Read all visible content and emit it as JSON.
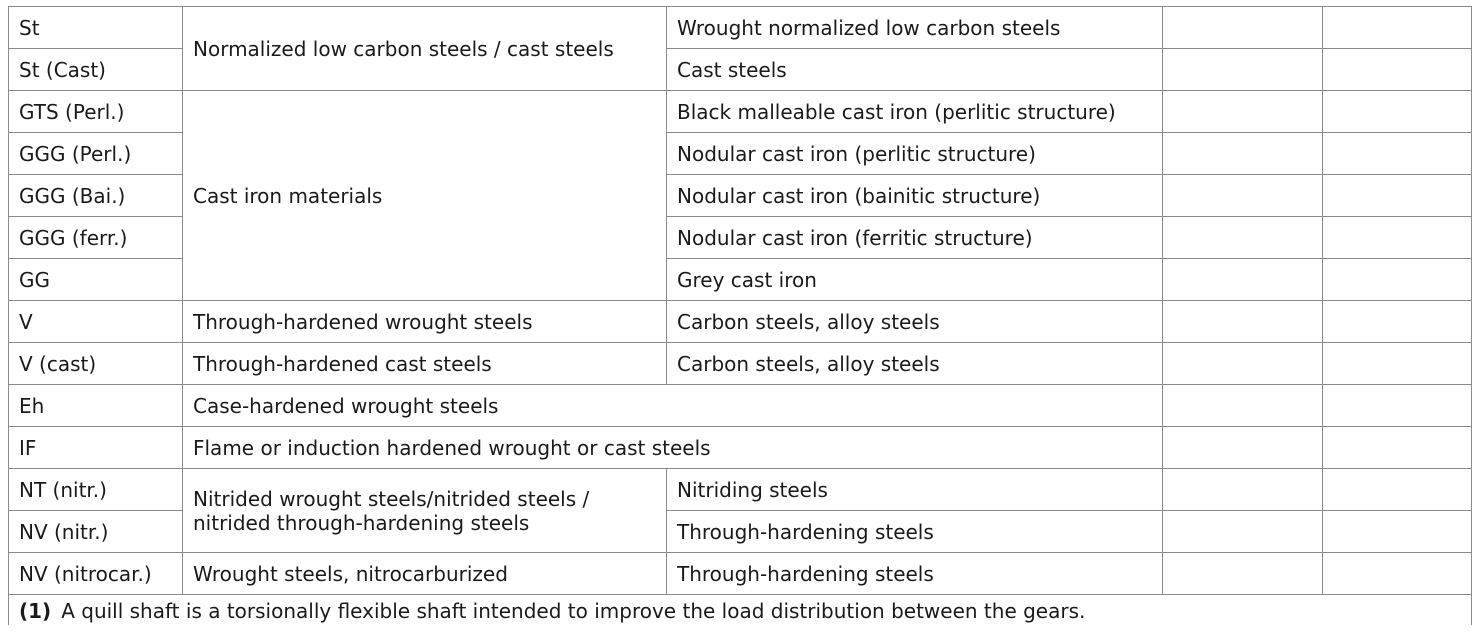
{
  "table": {
    "rows": [
      {
        "code": "St",
        "group": "Normalized low carbon steels / cast steels",
        "desc": "Wrought normalized low carbon steels"
      },
      {
        "code": "St (Cast)",
        "desc": "Cast steels"
      },
      {
        "code": "GTS (Perl.)",
        "group": "Cast iron materials",
        "desc": "Black malleable cast iron (perlitic structure)"
      },
      {
        "code": "GGG (Perl.)",
        "desc": "Nodular cast iron (perlitic structure)"
      },
      {
        "code": "GGG (Bai.)",
        "desc": "Nodular cast iron (bainitic structure)"
      },
      {
        "code": "GGG (ferr.)",
        "desc": "Nodular cast iron (ferritic structure)"
      },
      {
        "code": "GG",
        "desc": "Grey cast iron"
      },
      {
        "code": "V",
        "group": "Through-hardened wrought steels",
        "desc": "Carbon steels, alloy steels"
      },
      {
        "code": "V (cast)",
        "group": "Through-hardened cast steels",
        "desc": "Carbon steels, alloy steels"
      },
      {
        "code": "Eh",
        "group": "Case-hardened wrought steels"
      },
      {
        "code": "IF",
        "group": "Flame or induction hardened wrought or cast steels"
      },
      {
        "code": "NT (nitr.)",
        "group": "Nitrided wrought steels/nitrided steels / nitrided through-hardening steels",
        "desc": "Nitriding steels"
      },
      {
        "code": "NV (nitr.)",
        "desc": "Through-hardening steels"
      },
      {
        "code": "NV (nitrocar.)",
        "group": "Wrought steels, nitrocarburized",
        "desc": "Through-hardening steels"
      }
    ]
  },
  "footnote": {
    "number": "(1)",
    "text": "A quill shaft is a torsionally flexible shaft intended to improve the load distribution between the gears."
  }
}
